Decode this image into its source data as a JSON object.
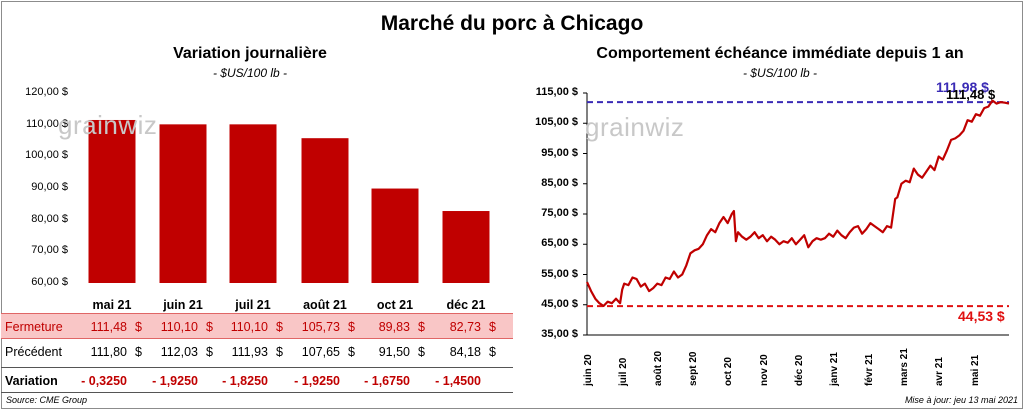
{
  "title": "Marché du porc à Chicago",
  "source": "Source: CME Group",
  "update": "Mise à jour: jeu 13 mai 2021",
  "watermark": "grainwiz",
  "colors": {
    "bar": "#c00000",
    "line": "#c00000",
    "high_ref": "#3a2bb5",
    "low_ref": "#e01010",
    "fermeture_bg": "#f9c6c6"
  },
  "chart_data": [
    {
      "type": "bar",
      "title": "Variation  journalière",
      "unit": "- $US/100 lb -",
      "ylim": [
        60,
        120
      ],
      "yticks": [
        "120,00 $",
        "110,00 $",
        "100,00 $",
        "90,00 $",
        "80,00 $",
        "70,00 $",
        "60,00 $"
      ],
      "categories": [
        "mai 21",
        "juin 21",
        "juil 21",
        "août 21",
        "oct 21",
        "déc 21"
      ],
      "values": [
        111.48,
        110.1,
        110.1,
        105.73,
        89.83,
        82.73
      ],
      "table": {
        "fermeture_label": "Fermeture",
        "fermeture": [
          "111,48",
          "110,10",
          "110,10",
          "105,73",
          "89,83",
          "82,73"
        ],
        "precedent_label": "Précédent",
        "precedent": [
          "111,80",
          "112,03",
          "111,93",
          "107,65",
          "91,50",
          "84,18"
        ],
        "variation_label": "Variation",
        "variation": [
          "- 0,3250",
          "- 1,9250",
          "- 1,8250",
          "- 1,9250",
          "- 1,6750",
          "- 1,4500"
        ],
        "currency": "$"
      }
    },
    {
      "type": "line",
      "title": "Comportement  échéance immédiate depuis 1 an",
      "unit": "- $US/100 lb -",
      "ylim": [
        35,
        115
      ],
      "yticks": [
        "115,00 $",
        "105,00 $",
        "95,00 $",
        "85,00 $",
        "75,00 $",
        "65,00 $",
        "55,00 $",
        "45,00 $",
        "35,00 $"
      ],
      "xticks": [
        "juin 20",
        "juil 20",
        "août 20",
        "sept 20",
        "oct 20",
        "nov 20",
        "déc 20",
        "janv 21",
        "févr 21",
        "mars 21",
        "avr 21",
        "mai 21"
      ],
      "high_ref": {
        "value": 111.98,
        "label": "111,98 $"
      },
      "low_ref": {
        "value": 44.53,
        "label": "44,53 $"
      },
      "last": {
        "value": 111.48,
        "label": "111,48 $"
      },
      "series": [
        {
          "values": [
            [
              0,
              52.5
            ],
            [
              4,
              49.5
            ],
            [
              8,
              47
            ],
            [
              12,
              45.5
            ],
            [
              16,
              44.6
            ],
            [
              20,
              46
            ],
            [
              24,
              45.5
            ],
            [
              28,
              47
            ],
            [
              32,
              45.5
            ],
            [
              34,
              50
            ],
            [
              36,
              52
            ],
            [
              40,
              51.5
            ],
            [
              44,
              54
            ],
            [
              48,
              53.5
            ],
            [
              52,
              51
            ],
            [
              56,
              52
            ],
            [
              60,
              49.5
            ],
            [
              64,
              50.5
            ],
            [
              68,
              52
            ],
            [
              72,
              51.5
            ],
            [
              76,
              54
            ],
            [
              80,
              53.5
            ],
            [
              84,
              56
            ],
            [
              88,
              54
            ],
            [
              92,
              55
            ],
            [
              96,
              58
            ],
            [
              100,
              62
            ],
            [
              104,
              63
            ],
            [
              108,
              63.5
            ],
            [
              112,
              65
            ],
            [
              116,
              68
            ],
            [
              120,
              70
            ],
            [
              124,
              69
            ],
            [
              128,
              72
            ],
            [
              132,
              74
            ],
            [
              136,
              72
            ],
            [
              140,
              75
            ],
            [
              142,
              76
            ],
            [
              144,
              66
            ],
            [
              146,
              69
            ],
            [
              150,
              67.5
            ],
            [
              154,
              66.5
            ],
            [
              158,
              67.5
            ],
            [
              162,
              69
            ],
            [
              166,
              67
            ],
            [
              170,
              68
            ],
            [
              174,
              66
            ],
            [
              178,
              67.5
            ],
            [
              182,
              66.5
            ],
            [
              186,
              65
            ],
            [
              190,
              66
            ],
            [
              194,
              65.5
            ],
            [
              198,
              67
            ],
            [
              202,
              65
            ],
            [
              206,
              66.5
            ],
            [
              210,
              68
            ],
            [
              214,
              64
            ],
            [
              218,
              66
            ],
            [
              222,
              67
            ],
            [
              226,
              66.5
            ],
            [
              230,
              67
            ],
            [
              234,
              68.5
            ],
            [
              238,
              67.5
            ],
            [
              242,
              69.5
            ],
            [
              246,
              68
            ],
            [
              250,
              67
            ],
            [
              254,
              69
            ],
            [
              258,
              70.5
            ],
            [
              262,
              71
            ],
            [
              266,
              68.5
            ],
            [
              270,
              70
            ],
            [
              274,
              72
            ],
            [
              278,
              71
            ],
            [
              282,
              70
            ],
            [
              286,
              69
            ],
            [
              290,
              71
            ],
            [
              294,
              70.5
            ],
            [
              298,
              80
            ],
            [
              300,
              80.5
            ],
            [
              304,
              85
            ],
            [
              308,
              86
            ],
            [
              312,
              85.5
            ],
            [
              316,
              90
            ],
            [
              320,
              88
            ],
            [
              324,
              87
            ],
            [
              328,
              89
            ],
            [
              332,
              91
            ],
            [
              336,
              89.5
            ],
            [
              340,
              94
            ],
            [
              344,
              93
            ],
            [
              348,
              96
            ],
            [
              352,
              99.5
            ],
            [
              356,
              100
            ],
            [
              360,
              101
            ],
            [
              364,
              102.5
            ],
            [
              368,
              106
            ],
            [
              372,
              105.5
            ],
            [
              376,
              108
            ],
            [
              380,
              107.5
            ],
            [
              384,
              110
            ],
            [
              388,
              110.5
            ],
            [
              392,
              112.5
            ],
            [
              396,
              111.5
            ],
            [
              400,
              112
            ],
            [
              404,
              111.8
            ],
            [
              408,
              111.48
            ]
          ]
        }
      ]
    }
  ]
}
